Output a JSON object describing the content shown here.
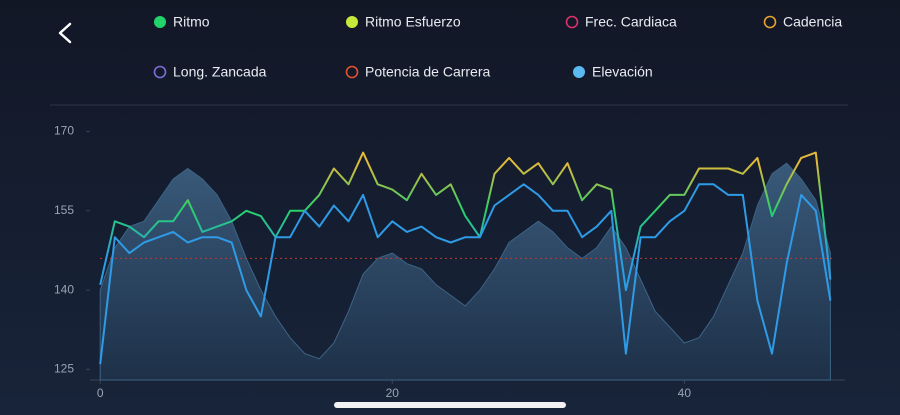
{
  "chart_data": {
    "type": "line",
    "xlim": [
      -0.7,
      51
    ],
    "ylim": [
      123,
      175
    ],
    "xticks": [
      0,
      20,
      40
    ],
    "yticks": [
      125,
      140,
      155,
      170
    ],
    "reference_line": {
      "value": 146,
      "color": "#c0392b"
    },
    "x": [
      0,
      1,
      2,
      3,
      4,
      5,
      6,
      7,
      8,
      9,
      10,
      11,
      12,
      13,
      14,
      15,
      16,
      17,
      18,
      19,
      20,
      21,
      22,
      23,
      24,
      25,
      26,
      27,
      28,
      29,
      30,
      31,
      32,
      33,
      34,
      35,
      36,
      37,
      38,
      39,
      40,
      41,
      42,
      43,
      44,
      45,
      46,
      47,
      48,
      49,
      50
    ],
    "series": [
      {
        "name": "Ritmo",
        "color": "#22d36b",
        "filled": true,
        "kind": "gradient-line",
        "color_scale": [
          {
            "value": 146,
            "color": "#2a9fe6"
          },
          {
            "value": 155,
            "color": "#26d16a"
          },
          {
            "value": 164,
            "color": "#e2b93b"
          }
        ],
        "values": [
          141,
          153,
          152,
          150,
          153,
          153,
          157,
          151,
          152,
          153,
          155,
          154,
          150,
          155,
          155,
          158,
          163,
          160,
          166,
          160,
          159,
          157,
          162,
          158,
          160,
          154,
          150,
          162,
          165,
          162,
          164,
          160,
          164,
          157,
          160,
          159,
          140,
          152,
          155,
          158,
          158,
          163,
          163,
          163,
          162,
          165,
          154,
          160,
          165,
          166,
          142
        ]
      },
      {
        "name": "Ritmo Esfuerzo",
        "color": "#c6e83a",
        "filled": true,
        "kind": "line",
        "line_color": "#2f9be6",
        "values": [
          126,
          150,
          147,
          149,
          150,
          151,
          149,
          150,
          150,
          149,
          140,
          135,
          150,
          150,
          155,
          152,
          156,
          153,
          158,
          150,
          153,
          151,
          152,
          150,
          149,
          150,
          150,
          156,
          158,
          160,
          158,
          155,
          155,
          150,
          152,
          155,
          128,
          150,
          150,
          153,
          155,
          160,
          160,
          158,
          158,
          138,
          128,
          145,
          158,
          155,
          138
        ]
      },
      {
        "name": "Frec. Cardiaca",
        "color": "#d8336b",
        "filled": false
      },
      {
        "name": "Cadencia",
        "color": "#e8a22c",
        "filled": false
      },
      {
        "name": "Long. Zancada",
        "color": "#7b6fd8",
        "filled": false
      },
      {
        "name": "Potencia de Carrera",
        "color": "#e0522d",
        "filled": false
      },
      {
        "name": "Elevación",
        "color": "#5cb8f0",
        "filled": true,
        "kind": "area",
        "line_color": "#3d6485",
        "values": [
          140,
          148,
          152,
          153,
          157,
          161,
          163,
          161,
          158,
          153,
          146,
          140,
          135,
          131,
          128,
          127,
          130,
          136,
          143,
          146,
          147,
          145,
          144,
          141,
          139,
          137,
          140,
          144,
          149,
          151,
          153,
          151,
          148,
          146,
          148,
          152,
          148,
          142,
          136,
          133,
          130,
          131,
          135,
          141,
          147,
          156,
          162,
          164,
          161,
          157,
          147
        ]
      }
    ]
  }
}
